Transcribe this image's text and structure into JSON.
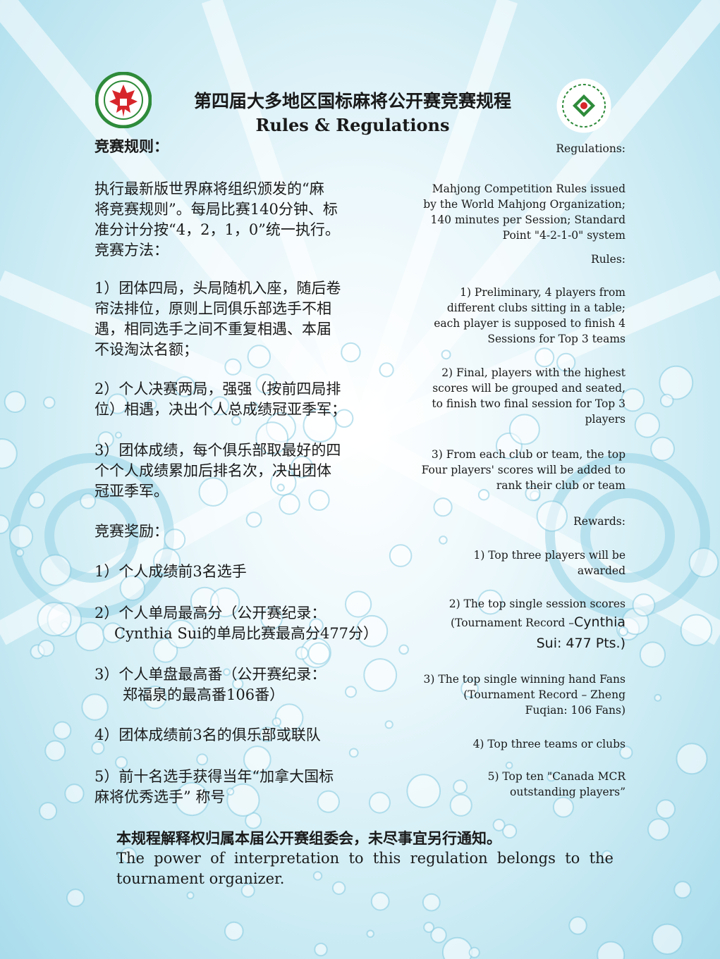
{
  "header": {
    "title_cn": "第四届大多地区国标麻将公开赛竞赛规程",
    "title_en": "Rules & Regulations",
    "left_logo": "maple-leaf-tournament-logo",
    "right_logo": "canada-mcr-sports-association-logo"
  },
  "cn": {
    "section_rules": "竞赛规则：",
    "rules_line1": "执行最新版世界麻将组织颁发的“麻",
    "rules_line2": "将竞赛规则”。每局比赛140分钟、标",
    "rules_line3": "准分计分按“4，2，1，0”统一执行。",
    "method_heading": "竞赛方法：",
    "m1_l1": "1）团体四局，头局随机入座，随后卷",
    "m1_l2": "帘法排位，原则上同俱乐部选手不相",
    "m1_l3": "遇，相同选手之间不重复相遇、本届",
    "m1_l4": "不设淘汰名额；",
    "m2_l1": "2）个人决赛两局，强强（按前四局排",
    "m2_l2": "位）相遇，决出个人总成绩冠亚季军；",
    "m3_l1": "3）团体成绩，每个俱乐部取最好的四",
    "m3_l2": "个个人成绩累加后排名次，决出团体",
    "m3_l3": "冠亚季军。",
    "rewards_heading": "竞赛奖励：",
    "r1": "1）个人成绩前3名选手",
    "r2_l1": "2）个人单局最高分（公开赛纪录：",
    "r2_l2": "Cynthia Sui的单局比赛最高分477分）",
    "r3_l1": "3）个人单盘最高番（公开赛纪录：",
    "r3_l2": "郑福泉的最高番106番）",
    "r4": "4）团体成绩前3名的俱乐部或联队",
    "r5_l1": "5）前十名选手获得当年“加拿大国标",
    "r5_l2": "麻将优秀选手” 称号"
  },
  "en": {
    "regulations_heading": "Regulations:",
    "reg_l1": "Mahjong Competition Rules issued",
    "reg_l2": "by the World Mahjong Organization;",
    "reg_l3": "140 minutes per Session; Standard",
    "reg_l4": "Point \"4-2-1-0\" system",
    "rules_heading": "Rules:",
    "ru1_l1": "1) Preliminary, 4 players from",
    "ru1_l2": "different clubs sitting in a table;",
    "ru1_l3": "each player is supposed to finish 4",
    "ru1_l4": "Sessions for Top 3 teams",
    "ru2_l1": "2) Final, players with the highest",
    "ru2_l2": "scores will be grouped and seated,",
    "ru2_l3": "to finish two final session for Top 3",
    "ru2_l4": "players",
    "ru3_l1": "3) From each club or team, the top",
    "ru3_l2": "Four players' scores will be added to",
    "ru3_l3": "rank  their club or team",
    "rewards_heading": "Rewards:",
    "rw1_l1": "1) Top three players will be",
    "rw1_l2": "awarded",
    "rw2_l1": "2) The top single session scores",
    "rw2_l2a": "(Tournament Record –",
    "rw2_l2b": "Cynthia",
    "rw2_l3": "Sui: 477 Pts.)",
    "rw3_l1": "3) The top single winning hand Fans",
    "rw3_l2": "(Tournament Record – Zheng",
    "rw3_l3": "Fuqian: 106 Fans)",
    "rw4": "4) Top three teams or clubs",
    "rw5_l1": "5) Top ten \"Canada MCR",
    "rw5_l2": "outstanding players”"
  },
  "footer": {
    "cn": "本规程解释权归属本届公开赛组委会，未尽事宜另行通知。",
    "en": "The power of interpretation to this regulation belongs to the tournament organizer."
  },
  "colors": {
    "background_light": "#eaf7fb",
    "background_blue": "#a9dcec",
    "logo_red": "#d7262b",
    "logo_green": "#2e8b3a"
  }
}
